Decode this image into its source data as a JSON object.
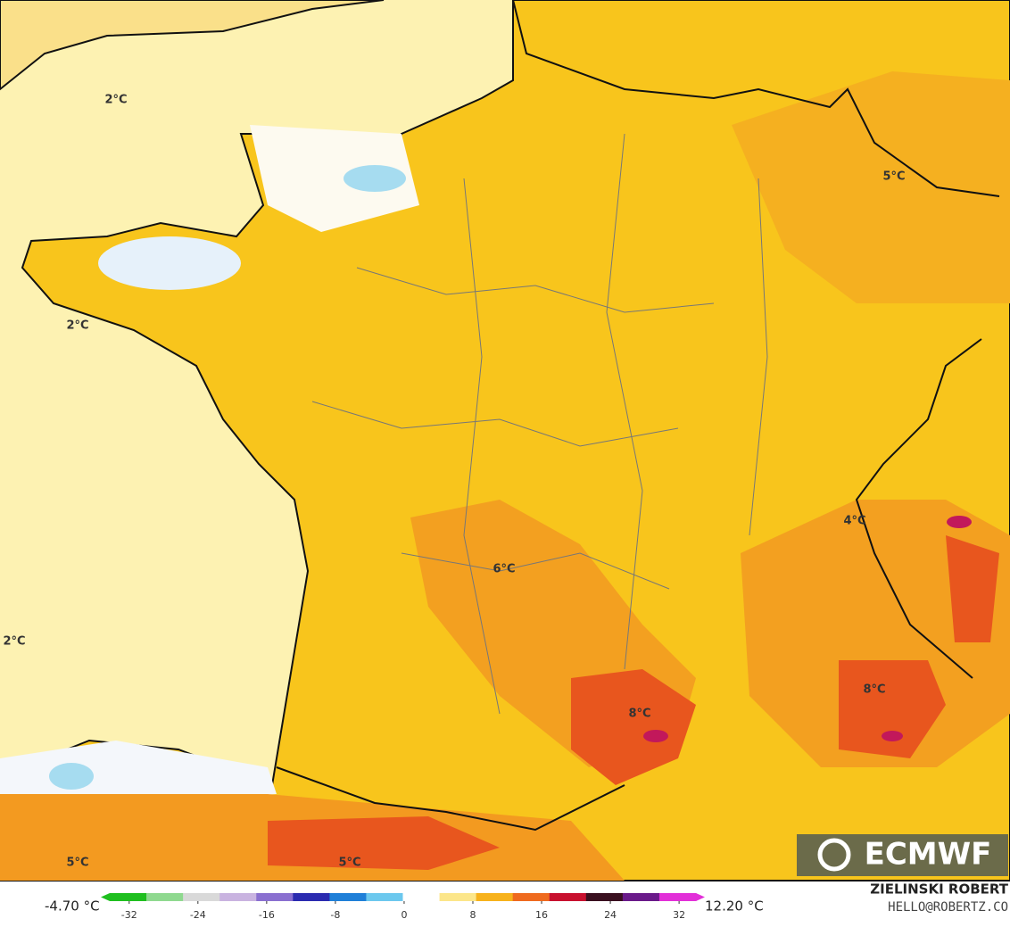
{
  "map": {
    "labels": [
      "2°C",
      "2°C",
      "2°C",
      "5°C",
      "6°C",
      "4°C",
      "8°C",
      "8°C",
      "5°C",
      "5°C"
    ],
    "logo": "ECMWF",
    "author": "ZIELINSKI ROBERT",
    "contact": "HELLO@ROBERTZ.CO",
    "colorbar": {
      "min_label": "-4.70 °C",
      "max_label": "12.20 °C",
      "lim": [
        -35.3,
        35
      ],
      "ticks": [
        -32,
        -24,
        -16,
        -8,
        0,
        8,
        16,
        24,
        32
      ]
    }
  }
}
